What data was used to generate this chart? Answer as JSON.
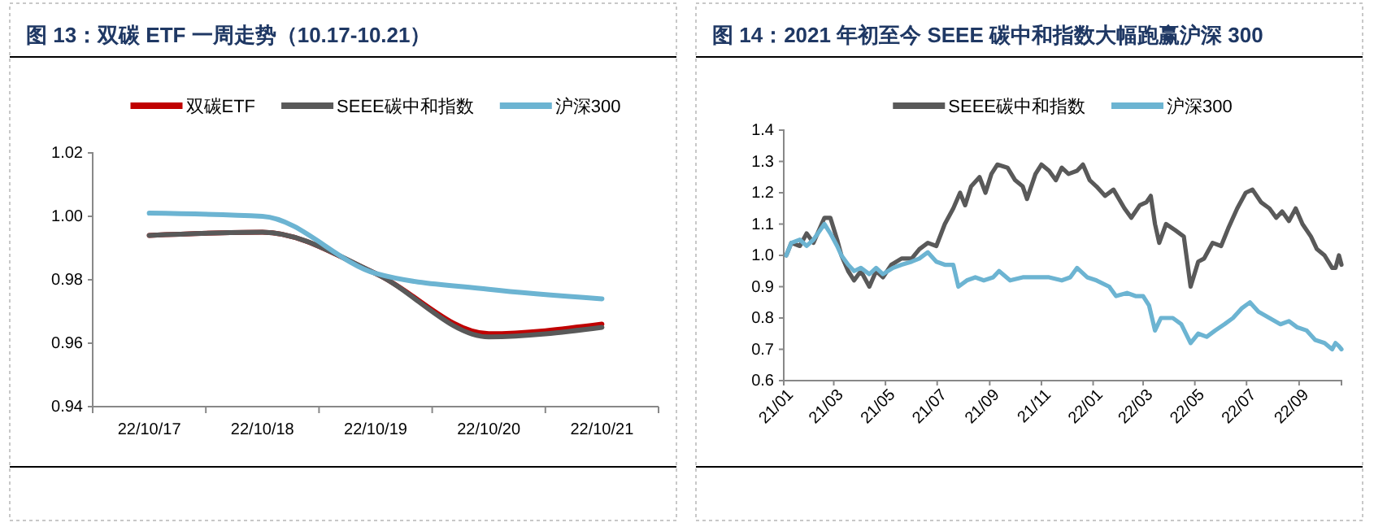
{
  "chart_data": [
    {
      "type": "line",
      "title": "图 13：双碳 ETF 一周走势（10.17-10.21）",
      "categories": [
        "22/10/17",
        "22/10/18",
        "22/10/19",
        "22/10/20",
        "22/10/21"
      ],
      "legend": "top",
      "grid": false,
      "series": [
        {
          "name": "双碳ETF",
          "color": "#c00000",
          "values": [
            0.994,
            0.995,
            0.982,
            0.963,
            0.966
          ]
        },
        {
          "name": "SEEE碳中和指数",
          "color": "#595959",
          "values": [
            0.994,
            0.995,
            0.982,
            0.962,
            0.965
          ]
        },
        {
          "name": "沪深300",
          "color": "#6cb4d2",
          "values": [
            1.001,
            1.0,
            0.982,
            0.977,
            0.974
          ]
        }
      ],
      "ylim": [
        0.94,
        1.02
      ],
      "yticks": [
        0.94,
        0.96,
        0.98,
        {
          "value": 1.0,
          "label": "1.00"
        },
        1.02
      ]
    },
    {
      "type": "line",
      "title": "图 14：2021 年初至今 SEEE 碳中和指数大幅跑赢沪深 300",
      "legend": "top",
      "grid": false,
      "series": [
        {
          "name": "SEEE碳中和指数",
          "color": "#595959",
          "x": [
            "2021-01-04",
            "2021-01-10",
            "2021-01-20",
            "2021-01-28",
            "2021-02-05",
            "2021-02-18",
            "2021-02-25",
            "2021-03-05",
            "2021-03-10",
            "2021-03-18",
            "2021-03-25",
            "2021-04-02",
            "2021-04-12",
            "2021-04-20",
            "2021-04-28",
            "2021-05-08",
            "2021-05-20",
            "2021-06-01",
            "2021-06-10",
            "2021-06-20",
            "2021-06-30",
            "2021-07-10",
            "2021-07-20",
            "2021-07-28",
            "2021-08-03",
            "2021-08-10",
            "2021-08-20",
            "2021-08-27",
            "2021-09-03",
            "2021-09-10",
            "2021-09-22",
            "2021-10-01",
            "2021-10-10",
            "2021-10-15",
            "2021-10-25",
            "2021-11-01",
            "2021-11-10",
            "2021-11-18",
            "2021-11-25",
            "2021-12-03",
            "2021-12-13",
            "2021-12-20",
            "2021-12-28",
            "2022-01-05",
            "2022-01-15",
            "2022-01-25",
            "2022-02-07",
            "2022-02-15",
            "2022-02-25",
            "2022-03-05",
            "2022-03-10",
            "2022-03-15",
            "2022-03-20",
            "2022-03-28",
            "2022-04-08",
            "2022-04-18",
            "2022-04-26",
            "2022-05-05",
            "2022-05-12",
            "2022-05-22",
            "2022-06-01",
            "2022-06-10",
            "2022-06-20",
            "2022-06-30",
            "2022-07-08",
            "2022-07-18",
            "2022-07-28",
            "2022-08-05",
            "2022-08-12",
            "2022-08-20",
            "2022-08-28",
            "2022-09-05",
            "2022-09-15",
            "2022-09-22",
            "2022-10-01",
            "2022-10-10",
            "2022-10-14",
            "2022-10-18",
            "2022-10-21"
          ],
          "values": [
            1.0,
            1.04,
            1.03,
            1.07,
            1.04,
            1.12,
            1.12,
            1.05,
            1.0,
            0.95,
            0.92,
            0.95,
            0.9,
            0.95,
            0.93,
            0.97,
            0.99,
            0.99,
            1.02,
            1.04,
            1.03,
            1.1,
            1.15,
            1.2,
            1.16,
            1.22,
            1.25,
            1.2,
            1.26,
            1.29,
            1.28,
            1.24,
            1.22,
            1.18,
            1.26,
            1.29,
            1.27,
            1.24,
            1.28,
            1.26,
            1.27,
            1.29,
            1.24,
            1.22,
            1.19,
            1.21,
            1.15,
            1.12,
            1.16,
            1.17,
            1.19,
            1.1,
            1.04,
            1.1,
            1.08,
            1.06,
            0.9,
            0.98,
            0.99,
            1.04,
            1.03,
            1.09,
            1.15,
            1.2,
            1.21,
            1.17,
            1.15,
            1.12,
            1.14,
            1.11,
            1.15,
            1.1,
            1.06,
            1.02,
            1.0,
            0.96,
            0.96,
            1.0,
            0.97
          ]
        },
        {
          "name": "沪深300",
          "color": "#6cb4d2",
          "x": [
            "2021-01-04",
            "2021-01-10",
            "2021-01-20",
            "2021-01-28",
            "2021-02-05",
            "2021-02-18",
            "2021-02-25",
            "2021-03-05",
            "2021-03-10",
            "2021-03-18",
            "2021-03-25",
            "2021-04-02",
            "2021-04-12",
            "2021-04-20",
            "2021-04-28",
            "2021-05-10",
            "2021-05-20",
            "2021-06-01",
            "2021-06-10",
            "2021-06-20",
            "2021-06-30",
            "2021-07-10",
            "2021-07-20",
            "2021-07-26",
            "2021-08-05",
            "2021-08-15",
            "2021-08-25",
            "2021-09-05",
            "2021-09-12",
            "2021-09-25",
            "2021-10-10",
            "2021-10-25",
            "2021-11-10",
            "2021-11-25",
            "2021-12-05",
            "2021-12-13",
            "2021-12-25",
            "2022-01-05",
            "2022-01-20",
            "2022-01-28",
            "2022-02-10",
            "2022-02-20",
            "2022-03-01",
            "2022-03-08",
            "2022-03-15",
            "2022-03-22",
            "2022-04-05",
            "2022-04-15",
            "2022-04-26",
            "2022-05-05",
            "2022-05-15",
            "2022-05-25",
            "2022-06-05",
            "2022-06-15",
            "2022-06-25",
            "2022-07-05",
            "2022-07-15",
            "2022-07-28",
            "2022-08-10",
            "2022-08-20",
            "2022-08-30",
            "2022-09-10",
            "2022-09-20",
            "2022-10-01",
            "2022-10-10",
            "2022-10-14",
            "2022-10-18",
            "2022-10-21"
          ],
          "values": [
            1.0,
            1.04,
            1.05,
            1.03,
            1.05,
            1.1,
            1.07,
            1.03,
            1.0,
            0.97,
            0.95,
            0.96,
            0.94,
            0.96,
            0.94,
            0.96,
            0.97,
            0.98,
            0.99,
            1.01,
            0.98,
            0.97,
            0.97,
            0.9,
            0.92,
            0.93,
            0.92,
            0.93,
            0.95,
            0.92,
            0.93,
            0.93,
            0.93,
            0.92,
            0.93,
            0.96,
            0.93,
            0.92,
            0.9,
            0.87,
            0.88,
            0.87,
            0.87,
            0.84,
            0.76,
            0.8,
            0.8,
            0.78,
            0.72,
            0.75,
            0.74,
            0.76,
            0.78,
            0.8,
            0.83,
            0.85,
            0.82,
            0.8,
            0.78,
            0.79,
            0.77,
            0.76,
            0.73,
            0.72,
            0.7,
            0.72,
            0.71,
            0.7
          ]
        }
      ],
      "xlim": [
        "2021-01-01",
        "2022-10-21"
      ],
      "xticks": [
        {
          "value": "2021-01-01",
          "label": "21/01"
        },
        {
          "value": "2021-03-01",
          "label": "21/03"
        },
        {
          "value": "2021-05-01",
          "label": "21/05"
        },
        {
          "value": "2021-07-01",
          "label": "21/07"
        },
        {
          "value": "2021-09-01",
          "label": "21/09"
        },
        {
          "value": "2021-11-01",
          "label": "21/11"
        },
        {
          "value": "2022-01-01",
          "label": "22/01"
        },
        {
          "value": "2022-03-01",
          "label": "22/03"
        },
        {
          "value": "2022-05-01",
          "label": "22/05"
        },
        {
          "value": "2022-07-01",
          "label": "22/07"
        },
        {
          "value": "2022-09-01",
          "label": "22/09"
        }
      ],
      "ylim": [
        0.6,
        1.4
      ],
      "yticks": [
        0.6,
        0.7,
        0.8,
        0.9,
        {
          "value": 1.0,
          "label": "1.0"
        },
        1.1,
        1.2,
        1.3,
        1.4
      ]
    }
  ]
}
